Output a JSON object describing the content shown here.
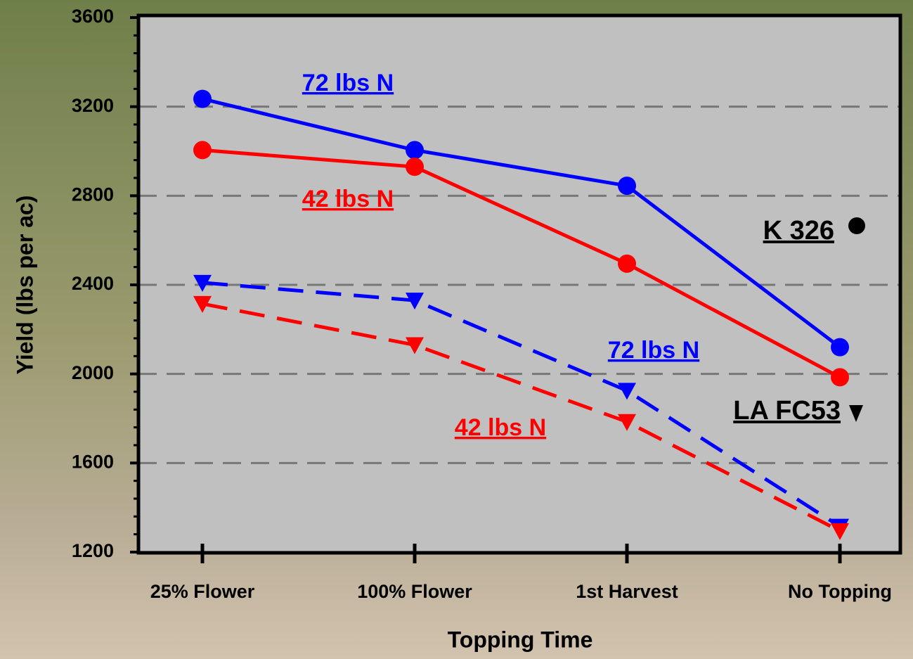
{
  "chart_data": {
    "type": "line",
    "x_label": "Topping Time",
    "y_label": "Yield (lbs per ac)",
    "categories": [
      "25% Flower",
      "100% Flower",
      "1st Harvest",
      "No Topping"
    ],
    "series": [
      {
        "name": "72 lbs N",
        "color": "#0000ff",
        "marker": "circle",
        "dashed": false,
        "values": [
          3235,
          3005,
          2845,
          2120
        ]
      },
      {
        "name": "42 lbs N",
        "color": "#ff0000",
        "marker": "circle",
        "dashed": false,
        "values": [
          3005,
          2930,
          2495,
          1985
        ]
      },
      {
        "name": "72 lbs N",
        "color": "#0000ff",
        "marker": "triangle",
        "dashed": true,
        "values": [
          2410,
          2330,
          1925,
          1315
        ]
      },
      {
        "name": "42 lbs N",
        "color": "#ff0000",
        "marker": "triangle",
        "dashed": true,
        "values": [
          2315,
          2130,
          1785,
          1295
        ]
      }
    ],
    "annotations": [
      "K 326",
      "LA FC53"
    ],
    "ylim": [
      1200,
      3600
    ],
    "yticks": [
      1200,
      1600,
      2000,
      2400,
      2800,
      3200,
      3600
    ],
    "grid": true
  }
}
